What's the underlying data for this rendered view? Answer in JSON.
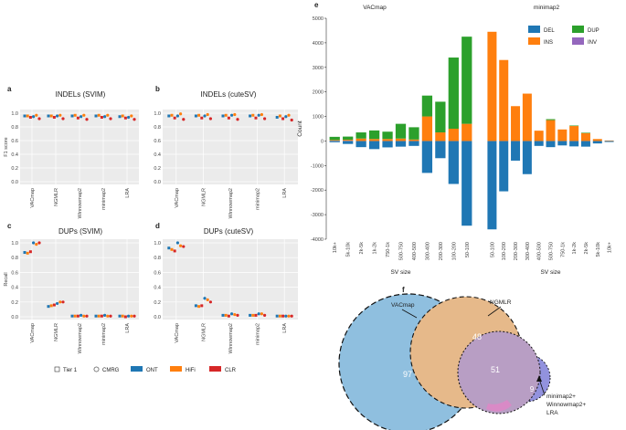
{
  "chart_data": {
    "panels_small": [
      {
        "id": "a",
        "title": "INDELs (SVIM)",
        "type": "scatter",
        "ylabel": "F1 score",
        "ylim": [
          0,
          1.0
        ],
        "yticks": [
          "0.0",
          "0.2",
          "0.4",
          "0.6",
          "0.8",
          "1.0"
        ],
        "categories": [
          "VACmap",
          "NGMLR",
          "Winnowmap2",
          "minimap2",
          "LRA"
        ],
        "series": [
          {
            "name": "ONT Tier1",
            "values": [
              0.96,
              0.96,
              0.96,
              0.96,
              0.95
            ]
          },
          {
            "name": "HiFi Tier1",
            "values": [
              0.96,
              0.96,
              0.97,
              0.97,
              0.96
            ]
          },
          {
            "name": "CLR Tier1",
            "values": [
              0.94,
              0.94,
              0.93,
              0.94,
              0.93
            ]
          },
          {
            "name": "ONT CMRG",
            "values": [
              0.95,
              0.96,
              0.95,
              0.95,
              0.94
            ]
          },
          {
            "name": "HiFi CMRG",
            "values": [
              0.97,
              0.97,
              0.97,
              0.97,
              0.96
            ]
          },
          {
            "name": "CLR CMRG",
            "values": [
              0.92,
              0.92,
              0.91,
              0.92,
              0.91
            ]
          }
        ]
      },
      {
        "id": "b",
        "title": "INDELs (cuteSV)",
        "type": "scatter",
        "ylabel": "",
        "ylim": [
          0,
          1.0
        ],
        "yticks": [
          "0.0",
          "0.2",
          "0.4",
          "0.6",
          "0.8",
          "1.0"
        ],
        "categories": [
          "VACmap",
          "NGMLR",
          "Winnowmap2",
          "minimap2",
          "LRA"
        ],
        "series": [
          {
            "name": "ONT Tier1",
            "values": [
              0.96,
              0.96,
              0.96,
              0.96,
              0.94
            ]
          },
          {
            "name": "HiFi Tier1",
            "values": [
              0.97,
              0.97,
              0.97,
              0.97,
              0.96
            ]
          },
          {
            "name": "CLR Tier1",
            "values": [
              0.93,
              0.93,
              0.93,
              0.93,
              0.92
            ]
          },
          {
            "name": "ONT CMRG",
            "values": [
              0.96,
              0.96,
              0.97,
              0.97,
              0.95
            ]
          },
          {
            "name": "HiFi CMRG",
            "values": [
              0.99,
              0.98,
              0.98,
              0.98,
              0.97
            ]
          },
          {
            "name": "CLR CMRG",
            "values": [
              0.91,
              0.92,
              0.91,
              0.92,
              0.9
            ]
          }
        ]
      },
      {
        "id": "c",
        "title": "DUPs (SVIM)",
        "type": "scatter",
        "ylabel": "Recall",
        "ylim": [
          0,
          1.0
        ],
        "yticks": [
          "0.0",
          "0.2",
          "0.4",
          "0.6",
          "0.8",
          "1.0"
        ],
        "categories": [
          "VACmap",
          "NGMLR",
          "Winnowmap2",
          "minimap2",
          "LRA"
        ],
        "series": [
          {
            "name": "ONT Tier1",
            "values": [
              0.87,
              0.14,
              0.01,
              0.01,
              0.01
            ]
          },
          {
            "name": "HiFi Tier1",
            "values": [
              0.86,
              0.15,
              0.01,
              0.01,
              0.01
            ]
          },
          {
            "name": "CLR Tier1",
            "values": [
              0.88,
              0.16,
              0.01,
              0.01,
              0.0
            ]
          },
          {
            "name": "ONT CMRG",
            "values": [
              1.0,
              0.18,
              0.02,
              0.02,
              0.01
            ]
          },
          {
            "name": "HiFi CMRG",
            "values": [
              0.98,
              0.2,
              0.01,
              0.01,
              0.01
            ]
          },
          {
            "name": "CLR CMRG",
            "values": [
              1.0,
              0.2,
              0.01,
              0.01,
              0.01
            ]
          }
        ]
      },
      {
        "id": "d",
        "title": "DUPs (cuteSV)",
        "type": "scatter",
        "ylabel": "",
        "ylim": [
          0,
          1.0
        ],
        "yticks": [
          "0.0",
          "0.2",
          "0.4",
          "0.6",
          "0.8",
          "1.0"
        ],
        "categories": [
          "VACmap",
          "NGMLR",
          "Winnowmap2",
          "minimap2",
          "LRA"
        ],
        "series": [
          {
            "name": "ONT Tier1",
            "values": [
              0.93,
              0.15,
              0.02,
              0.02,
              0.01
            ]
          },
          {
            "name": "HiFi Tier1",
            "values": [
              0.91,
              0.14,
              0.02,
              0.02,
              0.01
            ]
          },
          {
            "name": "CLR Tier1",
            "values": [
              0.89,
              0.15,
              0.01,
              0.02,
              0.01
            ]
          },
          {
            "name": "ONT CMRG",
            "values": [
              1.0,
              0.25,
              0.04,
              0.04,
              0.01
            ]
          },
          {
            "name": "HiFi CMRG",
            "values": [
              0.96,
              0.23,
              0.03,
              0.04,
              0.01
            ]
          },
          {
            "name": "CLR CMRG",
            "values": [
              0.95,
              0.2,
              0.02,
              0.02,
              0.01
            ]
          }
        ]
      }
    ],
    "legend_small": {
      "shapes": [
        "Tier 1",
        "CMRG"
      ],
      "colors": [
        {
          "name": "ONT",
          "color": "#1f77b4"
        },
        {
          "name": "HiFi",
          "color": "#ff7f0e"
        },
        {
          "name": "CLR",
          "color": "#d62728"
        }
      ]
    },
    "panel_e": {
      "id": "e",
      "type": "bar",
      "ylabel": "Count",
      "xlabel": "SV size",
      "ylim": [
        -4000,
        5000
      ],
      "yticks": [
        "-4000",
        "-3000",
        "-2000",
        "-1000",
        "0",
        "1000",
        "2000",
        "3000",
        "4000",
        "5000"
      ],
      "colors": {
        "DEL": "#1f77b4",
        "INS": "#ff7f0e",
        "DUP": "#2ca02c",
        "INV": "#9467bd"
      },
      "legend": [
        "DEL",
        "DUP",
        "INS",
        "INV"
      ],
      "groups": [
        {
          "title": "VACmap",
          "categories": [
            "10k+",
            "5k-10k",
            "2k-5k",
            "1k-2k",
            "750-1k",
            "500-750",
            "400-500",
            "300-400",
            "200-300",
            "100-200",
            "50-100"
          ],
          "DEL": [
            -50,
            -120,
            -250,
            -330,
            -260,
            -230,
            -200,
            -1300,
            -700,
            -1750,
            -3450
          ],
          "INS": [
            30,
            40,
            100,
            80,
            80,
            100,
            60,
            1000,
            350,
            500,
            700
          ],
          "DUP": [
            130,
            130,
            250,
            350,
            300,
            600,
            500,
            850,
            1250,
            2900,
            3550
          ],
          "INV": [
            10,
            10,
            0,
            0,
            0,
            0,
            0,
            0,
            0,
            0,
            0
          ]
        },
        {
          "title": "minimap2",
          "categories": [
            "50-100",
            "100-200",
            "200-300",
            "300-400",
            "400-500",
            "500-750",
            "750-1k",
            "1k-2k",
            "2k-5k",
            "5k-10k",
            "10k+"
          ],
          "DEL": [
            -3600,
            -2050,
            -800,
            -1350,
            -200,
            -250,
            -180,
            -220,
            -230,
            -100,
            -40
          ],
          "INS": [
            4450,
            3300,
            1420,
            1930,
            420,
            850,
            470,
            610,
            320,
            80,
            20
          ],
          "DUP": [
            0,
            0,
            0,
            0,
            0,
            40,
            0,
            20,
            20,
            0,
            0
          ],
          "INV": [
            0,
            0,
            0,
            0,
            0,
            0,
            0,
            0,
            0,
            0,
            0
          ]
        }
      ]
    },
    "panel_f": {
      "id": "f",
      "type": "venn",
      "sets": [
        {
          "name": "VACmap",
          "color": "#8fbfdf"
        },
        {
          "name": "NGMLR",
          "color": "#e6b98a"
        },
        {
          "name": "minimap2+\nWinnowmap2+\nLRA",
          "color": "#7f7fd8"
        }
      ],
      "regions": {
        "VACmap_only": 97,
        "VACmap_NGMLR": 48,
        "all_three": 51,
        "third_only": 9
      }
    }
  }
}
